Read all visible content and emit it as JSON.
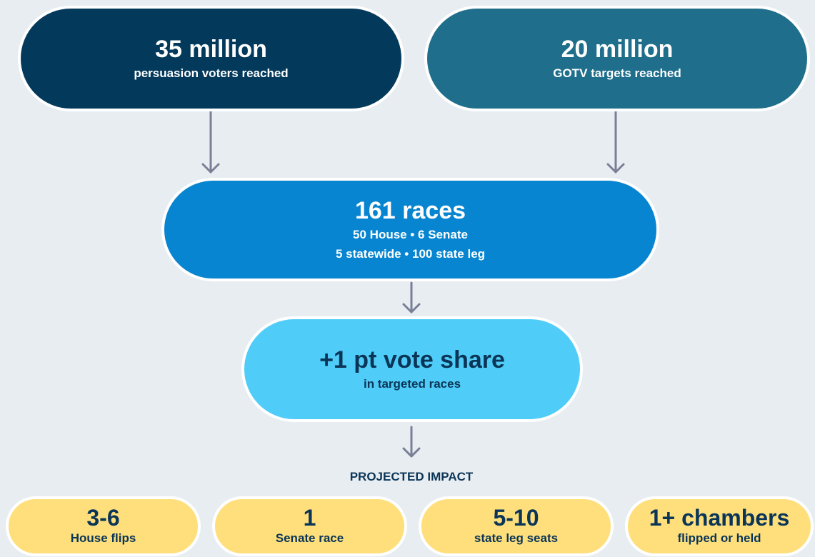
{
  "nodes": [
    {
      "title": "35 million",
      "lines": [
        "persuasion voters reached"
      ]
    },
    {
      "title": "20 million",
      "lines": [
        "GOTV targets reached"
      ]
    },
    {
      "title": "161 races",
      "lines": [
        "50 House • 6 Senate",
        "5 statewide • 100 state leg"
      ]
    },
    {
      "title": "+1 pt vote share",
      "lines": [
        "in targeted races"
      ]
    }
  ],
  "impact_heading": "PROJECTED IMPACT",
  "impacts": [
    {
      "value": "3-6",
      "label": "House flips"
    },
    {
      "value": "1",
      "label": "Senate race"
    },
    {
      "value": "5-10",
      "label": "state leg seats"
    },
    {
      "value": "1+ chambers",
      "label": "flipped or held"
    }
  ]
}
